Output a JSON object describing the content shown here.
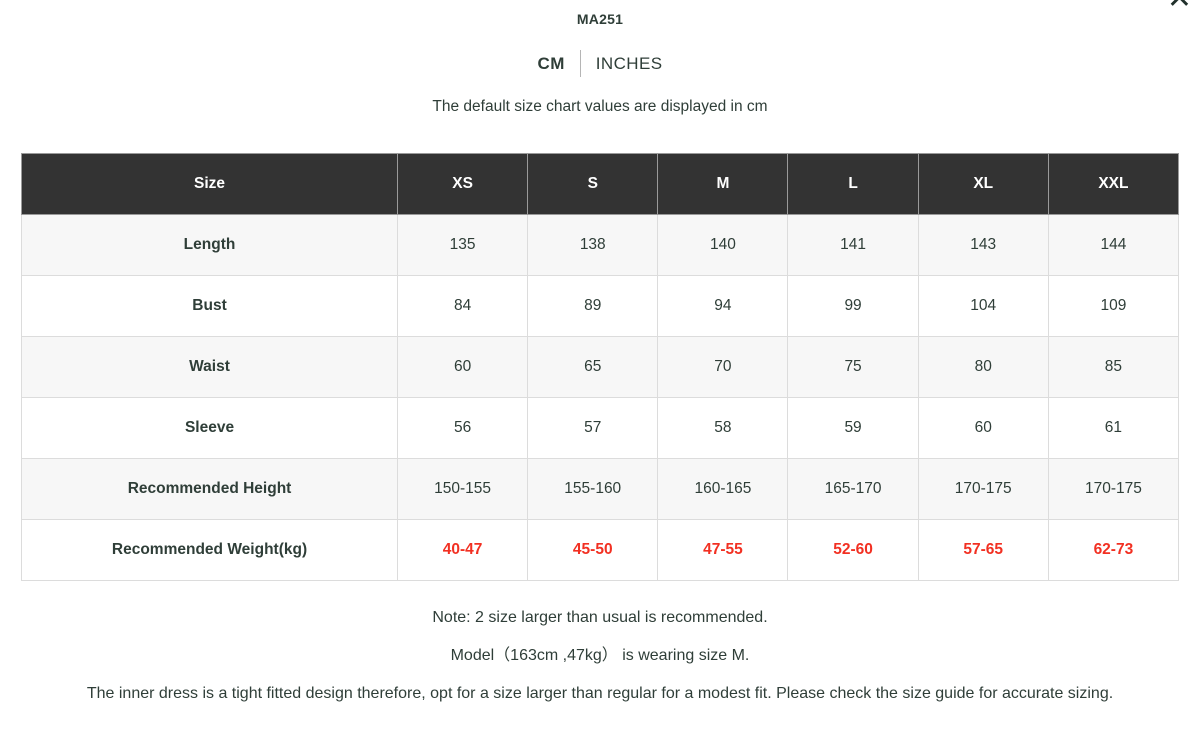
{
  "modal": {
    "title": "MA251",
    "close_icon": "✕",
    "unit_tabs": [
      {
        "label": "CM",
        "active": true
      },
      {
        "label": "INCHES",
        "active": false
      }
    ],
    "subtitle": "The default size chart values are displayed in cm"
  },
  "table": {
    "columns": [
      "Size",
      "XS",
      "S",
      "M",
      "L",
      "XL",
      "XXL"
    ],
    "rows": [
      {
        "label": "Length",
        "values": [
          "135",
          "138",
          "140",
          "141",
          "143",
          "144"
        ],
        "highlight": false
      },
      {
        "label": "Bust",
        "values": [
          "84",
          "89",
          "94",
          "99",
          "104",
          "109"
        ],
        "highlight": false
      },
      {
        "label": "Waist",
        "values": [
          "60",
          "65",
          "70",
          "75",
          "80",
          "85"
        ],
        "highlight": false
      },
      {
        "label": "Sleeve",
        "values": [
          "56",
          "57",
          "58",
          "59",
          "60",
          "61"
        ],
        "highlight": false
      },
      {
        "label": "Recommended Height",
        "values": [
          "150-155",
          "155-160",
          "160-165",
          "165-170",
          "170-175",
          "170-175"
        ],
        "highlight": false
      },
      {
        "label": "Recommended Weight(kg)",
        "values": [
          "40-47",
          "45-50",
          "47-55",
          "52-60",
          "57-65",
          "62-73"
        ],
        "highlight": true
      }
    ]
  },
  "notes": [
    "Note: 2 size larger than usual is recommended.",
    "Model（163cm ,47kg） is wearing size M.",
    "The inner dress is a tight fitted design therefore, opt for a size larger than regular for a modest fit. Please check the size guide for accurate sizing."
  ],
  "colors": {
    "header_bg": "#333333",
    "header_text": "#ffffff",
    "body_text": "#2f3e38",
    "highlight_text": "#f23022",
    "row_alt_bg": "#f7f7f7",
    "border": "#dcdcdc"
  }
}
